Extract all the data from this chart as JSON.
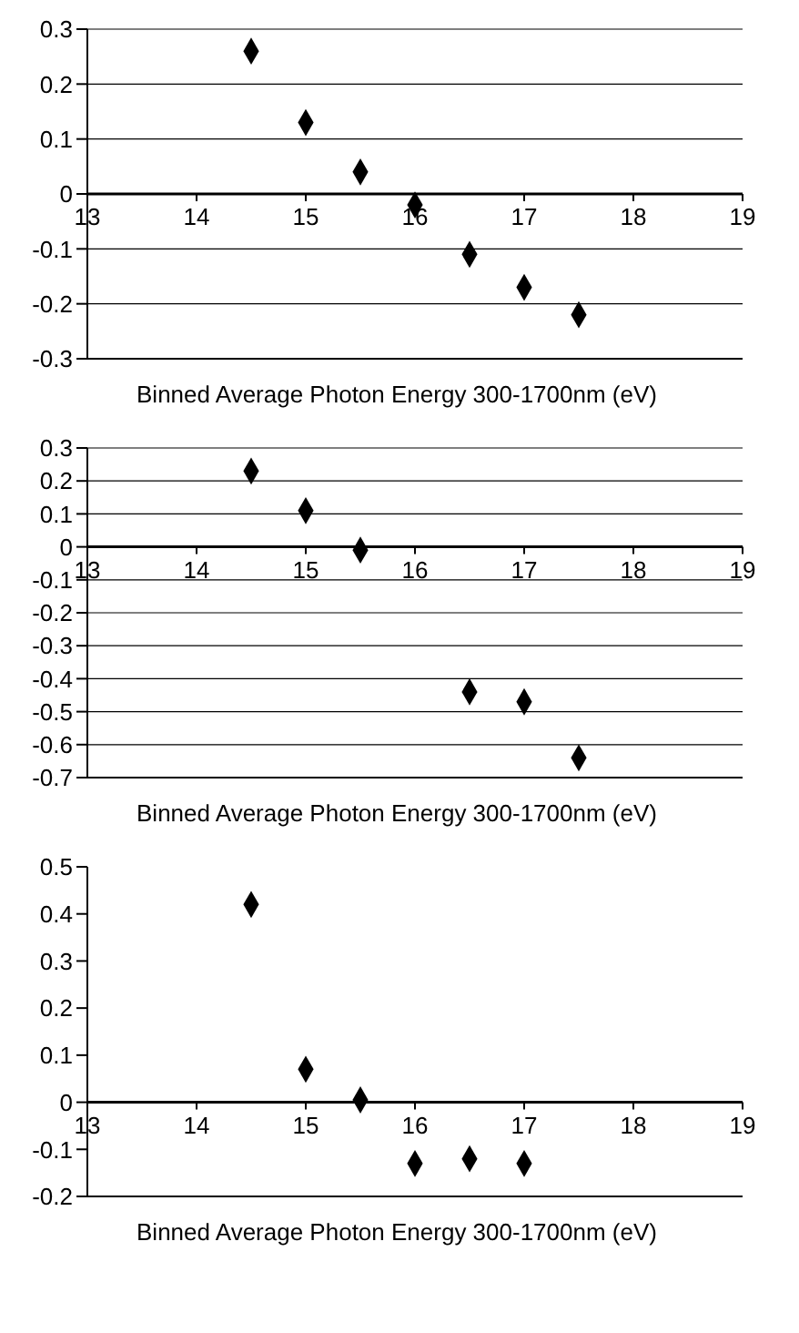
{
  "chart_data": [
    {
      "type": "scatter",
      "xlabel": "Binned Average Photon Energy 300-1700nm (eV)",
      "x": [
        14.5,
        15,
        15.5,
        16,
        16.5,
        17,
        17.5
      ],
      "values": [
        0.26,
        0.13,
        0.04,
        -0.02,
        -0.11,
        -0.17,
        -0.22
      ],
      "color": "#000000",
      "marker": "diamond",
      "xlim": [
        13,
        19
      ],
      "xticks": [
        13,
        14,
        15,
        16,
        17,
        18,
        19
      ],
      "ylim": [
        -0.3,
        0.3
      ],
      "yticks": [
        -0.3,
        -0.2,
        -0.1,
        0,
        0.1,
        0.2,
        0.3
      ],
      "grid": "y"
    },
    {
      "type": "scatter",
      "xlabel": "Binned Average Photon Energy 300-1700nm (eV)",
      "x": [
        14.5,
        15,
        15.5,
        16.5,
        17,
        17.5
      ],
      "values": [
        0.23,
        0.11,
        -0.01,
        -0.44,
        -0.47,
        -0.64
      ],
      "color": "#000000",
      "marker": "diamond",
      "xlim": [
        13,
        19
      ],
      "xticks": [
        13,
        14,
        15,
        16,
        17,
        18,
        19
      ],
      "ylim": [
        -0.7,
        0.3
      ],
      "yticks": [
        -0.7,
        -0.6,
        -0.5,
        -0.4,
        -0.3,
        -0.2,
        -0.1,
        0,
        0.1,
        0.2,
        0.3
      ],
      "grid": "y"
    },
    {
      "type": "scatter",
      "xlabel": "Binned Average Photon Energy 300-1700nm (eV)",
      "x": [
        14.5,
        15,
        15.5,
        16,
        16.5,
        17
      ],
      "values": [
        0.42,
        0.07,
        0.005,
        -0.13,
        -0.12,
        -0.13
      ],
      "color": "#000000",
      "marker": "diamond",
      "xlim": [
        13,
        19
      ],
      "xticks": [
        13,
        14,
        15,
        16,
        17,
        18,
        19
      ],
      "ylim": [
        -0.2,
        0.5
      ],
      "yticks": [
        -0.2,
        -0.1,
        0,
        0.1,
        0.2,
        0.3,
        0.4,
        0.5
      ]
    }
  ]
}
